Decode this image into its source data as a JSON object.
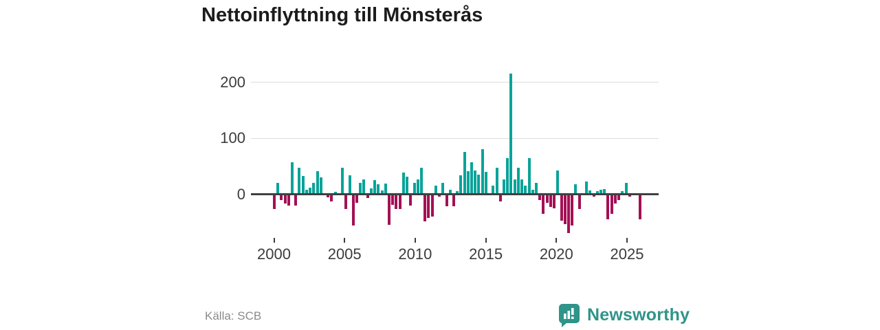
{
  "title": "Nettoinflyttning till Mönsterås",
  "source": {
    "label": "Källa: SCB"
  },
  "branding": {
    "name": "Newsworthy",
    "icon": "bar-chart-speech-bubble-icon"
  },
  "colors": {
    "positive_bar": "#0aa39a",
    "negative_bar": "#a31055",
    "grid": "#dcdcdc",
    "zero_line": "#404040",
    "title_text": "#1c1c1c",
    "axis_text": "#3c3c3c",
    "source_text": "#8a8a8a",
    "brand_teal": "#2f9489"
  },
  "chart_data": {
    "type": "bar",
    "title": "Nettoinflyttning till Mönsterås",
    "ylabel": "",
    "xlabel": "",
    "unit": "net migration per quarter (persons)",
    "frequency": "quarterly",
    "start": "2000 Q1",
    "end": "2025 Q3",
    "legend": "none",
    "grid": "horizontal gridlines at y=100 and y=200",
    "ylim": [
      -80,
      230
    ],
    "y_ticks": [
      0,
      100,
      200
    ],
    "x_tick_labels": [
      "2000",
      "2005",
      "2010",
      "2015",
      "2020",
      "2025"
    ],
    "series_note": "positive quarters teal, negative quarters dark magenta",
    "values": [
      -24,
      18,
      -9,
      -15,
      -18,
      55,
      -18,
      45,
      31,
      6,
      10,
      19,
      39,
      28,
      0,
      -4,
      -11,
      3,
      0,
      45,
      -25,
      32,
      -54,
      -13,
      18,
      24,
      -5,
      9,
      23,
      16,
      5,
      17,
      -53,
      -17,
      -24,
      -24,
      37,
      30,
      -18,
      18,
      24,
      45,
      -47,
      -40,
      -38,
      13,
      -2,
      18,
      -19,
      6,
      -20,
      4,
      32,
      74,
      39,
      55,
      40,
      33,
      78,
      38,
      0,
      14,
      45,
      -11,
      24,
      63,
      213,
      24,
      46,
      24,
      14,
      63,
      6,
      18,
      -9,
      -33,
      -13,
      -21,
      -23,
      41,
      -45,
      -52,
      -67,
      -54,
      16,
      -25,
      0,
      21,
      5,
      -2,
      4,
      6,
      8,
      -43,
      -33,
      -15,
      -9,
      4,
      18,
      -2,
      0,
      0,
      -43
    ]
  }
}
